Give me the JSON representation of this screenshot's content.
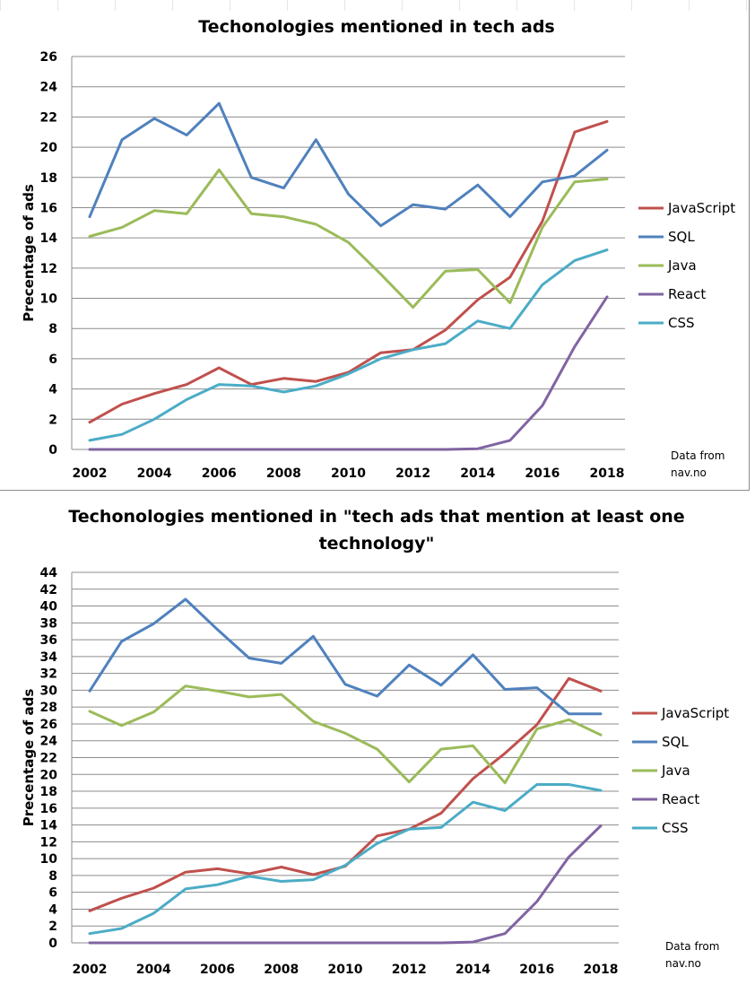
{
  "chart_data": [
    {
      "type": "line",
      "title": "Techonologies mentioned in tech ads",
      "title_lines": [
        "Techonologies mentioned in tech ads"
      ],
      "xlabel": "",
      "ylabel": "Precentage of ads",
      "x": [
        2002,
        2003,
        2004,
        2005,
        2006,
        2007,
        2008,
        2009,
        2010,
        2011,
        2012,
        2013,
        2014,
        2015,
        2016,
        2017,
        2018
      ],
      "x_tick_labels": [
        "2002",
        "2004",
        "2006",
        "2008",
        "2010",
        "2012",
        "2014",
        "2016",
        "2018"
      ],
      "y_ticks": [
        0,
        2,
        4,
        6,
        8,
        10,
        12,
        14,
        16,
        18,
        20,
        22,
        24,
        26
      ],
      "ylim": [
        0,
        26
      ],
      "grid": true,
      "legend_position": "right",
      "note": [
        "Data from",
        "nav.no"
      ],
      "series": [
        {
          "name": "JavaScript",
          "color": "#c0504d",
          "values": [
            1.8,
            3.0,
            3.7,
            4.3,
            5.4,
            4.3,
            4.7,
            4.5,
            5.1,
            6.4,
            6.6,
            7.9,
            9.9,
            11.4,
            15.1,
            21.0,
            21.7
          ]
        },
        {
          "name": "SQL",
          "color": "#4f81bd",
          "values": [
            15.4,
            20.5,
            21.9,
            20.8,
            22.9,
            18.0,
            17.3,
            20.5,
            16.9,
            14.8,
            16.2,
            15.9,
            17.5,
            15.4,
            17.7,
            18.1,
            19.8
          ]
        },
        {
          "name": "Java",
          "color": "#9bbb59",
          "values": [
            14.1,
            14.7,
            15.8,
            15.6,
            18.5,
            15.6,
            15.4,
            14.9,
            13.7,
            11.6,
            9.4,
            11.8,
            11.9,
            9.7,
            14.7,
            17.7,
            17.9
          ]
        },
        {
          "name": "React",
          "color": "#8064a2",
          "values": [
            0,
            0,
            0,
            0,
            0,
            0,
            0,
            0,
            0,
            0,
            0,
            0,
            0.05,
            0.6,
            2.9,
            6.8,
            10.1
          ]
        },
        {
          "name": "CSS",
          "color": "#4bacc6",
          "values": [
            0.6,
            1.0,
            2.0,
            3.3,
            4.3,
            4.2,
            3.8,
            4.2,
            5.0,
            6.0,
            6.6,
            7.0,
            8.5,
            8.0,
            10.9,
            12.5,
            13.2
          ]
        }
      ]
    },
    {
      "type": "line",
      "title": "Techonologies mentioned in \"tech ads that mention at least one technology\"",
      "title_lines": [
        "Techonologies mentioned in \"tech ads that mention at least one",
        "technology\""
      ],
      "xlabel": "",
      "ylabel": "Precentage of ads",
      "x": [
        2002,
        2003,
        2004,
        2005,
        2006,
        2007,
        2008,
        2009,
        2010,
        2011,
        2012,
        2013,
        2014,
        2015,
        2016,
        2017,
        2018
      ],
      "x_tick_labels": [
        "2002",
        "2004",
        "2006",
        "2008",
        "2010",
        "2012",
        "2014",
        "2016",
        "2018"
      ],
      "y_ticks": [
        0,
        2,
        4,
        6,
        8,
        10,
        12,
        14,
        16,
        18,
        20,
        22,
        24,
        26,
        28,
        30,
        32,
        34,
        36,
        38,
        40,
        42,
        44
      ],
      "ylim": [
        0,
        44
      ],
      "grid": true,
      "legend_position": "right",
      "note": [
        "Data from",
        "nav.no"
      ],
      "series": [
        {
          "name": "JavaScript",
          "color": "#c0504d",
          "values": [
            3.8,
            5.3,
            6.5,
            8.4,
            8.8,
            8.2,
            9.0,
            8.1,
            9.1,
            12.7,
            13.5,
            15.4,
            19.5,
            22.5,
            25.9,
            31.4,
            29.9
          ]
        },
        {
          "name": "SQL",
          "color": "#4f81bd",
          "values": [
            29.9,
            35.8,
            37.9,
            40.8,
            37.2,
            33.8,
            33.2,
            36.4,
            30.7,
            29.3,
            33.0,
            30.6,
            34.2,
            30.1,
            30.3,
            27.2,
            27.2
          ]
        },
        {
          "name": "Java",
          "color": "#9bbb59",
          "values": [
            27.5,
            25.8,
            27.4,
            30.5,
            29.9,
            29.2,
            29.5,
            26.3,
            24.9,
            23.0,
            19.1,
            23.0,
            23.4,
            19.0,
            25.4,
            26.5,
            24.7
          ]
        },
        {
          "name": "React",
          "color": "#8064a2",
          "values": [
            0,
            0,
            0,
            0,
            0,
            0,
            0,
            0,
            0,
            0,
            0,
            0,
            0.1,
            1.1,
            4.9,
            10.2,
            13.9
          ]
        },
        {
          "name": "CSS",
          "color": "#4bacc6",
          "values": [
            1.1,
            1.7,
            3.5,
            6.4,
            6.9,
            7.9,
            7.3,
            7.5,
            9.2,
            11.8,
            13.5,
            13.7,
            16.7,
            15.7,
            18.8,
            18.8,
            18.1
          ]
        }
      ]
    }
  ]
}
